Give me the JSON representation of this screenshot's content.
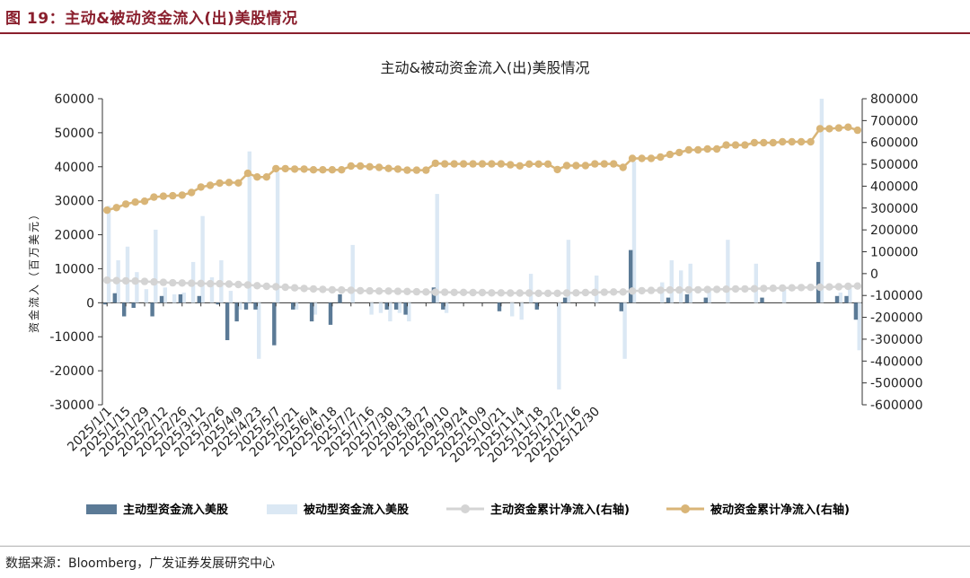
{
  "figure": {
    "label": "图 19：主动&被动资金流入(出)美股情况",
    "source": "数据来源：Bloomberg，广发证券发展研究中心"
  },
  "colors": {
    "active_bar": "#5b7a96",
    "passive_bar": "#dbe8f4",
    "active_cum_line": "#d4d4d4",
    "passive_cum_line": "#d9b577",
    "header_rule": "#8a1f2d",
    "text": "#1f1f1f"
  },
  "chart_data": {
    "type": "bar+line",
    "title": "主动&被动资金流入(出)美股情况",
    "ylabel_left": "资金流入（百万美元）",
    "ylabel_right": "",
    "ylim_left": [
      -30000,
      60000
    ],
    "ylim_right": [
      -600000,
      800000
    ],
    "yticks_left": [
      "-30000",
      "-20000",
      "-10000",
      "0",
      "10000",
      "20000",
      "30000",
      "40000",
      "50000",
      "60000"
    ],
    "yticks_right": [
      "-600000",
      "-500000",
      "-400000",
      "-300000",
      "-200000",
      "-100000",
      "0",
      "100000",
      "200000",
      "300000",
      "400000",
      "500000",
      "600000",
      "700000",
      "800000"
    ],
    "x_tick_labels": [
      "2025/1/1",
      "2025/1/15",
      "2025/1/29",
      "2025/2/12",
      "2025/2/26",
      "2025/3/12",
      "2025/3/26",
      "2025/4/9",
      "2025/4/23",
      "2025/5/7",
      "2025/5/21",
      "2025/6/4",
      "2025/6/18",
      "2025/7/2",
      "2025/7/16",
      "2025/7/30",
      "2025/8/13",
      "2025/8/27",
      "2025/9/10",
      "2025/9/24",
      "2025/10/9",
      "2025/10/21",
      "2025/11/4",
      "2025/11/18",
      "2025/12/2",
      "2025/12/16",
      "2025/12/30"
    ],
    "points_per_tick": 2,
    "legend": [
      "主动型资金流入美股",
      "被动型资金流入美股",
      "主动资金累计净流入(右轴)",
      "被动资金累计净流入(右轴)"
    ],
    "legend_position": "bottom",
    "series": [
      {
        "name": "主动型资金流入美股",
        "type": "bar",
        "axis": "left",
        "values": [
          -500,
          2800,
          -4000,
          -1500,
          0,
          -4000,
          2000,
          0,
          2500,
          0,
          2000,
          0,
          -500,
          -11000,
          -5500,
          -2000,
          -2000,
          0,
          -12500,
          0,
          -2000,
          0,
          -5500,
          0,
          -6500,
          2500,
          0,
          0,
          0,
          0,
          -2000,
          -2000,
          -3500,
          0,
          0,
          4500,
          -2000,
          0,
          0,
          0,
          0,
          0,
          -2500,
          0,
          0,
          0,
          -2000,
          0,
          0,
          1500,
          0,
          0,
          0,
          0,
          0,
          -2500,
          15500,
          0,
          0,
          0,
          1500,
          0,
          2500,
          0,
          1500,
          0,
          0,
          0,
          0,
          0,
          1500,
          0,
          0,
          0,
          0,
          0,
          12000,
          0,
          2000,
          2000,
          -5000
        ]
      },
      {
        "name": "被动型资金流入美股",
        "type": "bar",
        "axis": "left",
        "values": [
          28500,
          12500,
          16500,
          9000,
          4000,
          21500,
          4500,
          2500,
          3000,
          12000,
          25500,
          7500,
          12500,
          3500,
          -2000,
          44500,
          -16500,
          0,
          38500,
          0,
          -2000,
          0,
          -3500,
          0,
          0,
          0,
          17000,
          0,
          -3500,
          -3000,
          -5500,
          -3000,
          -5500,
          0,
          0,
          32000,
          -3000,
          0,
          0,
          0,
          0,
          0,
          0,
          -4000,
          -5000,
          8500,
          0,
          0,
          -25500,
          18500,
          0,
          0,
          8000,
          0,
          0,
          -16500,
          41500,
          0,
          0,
          6000,
          12500,
          9500,
          11500,
          0,
          4500,
          0,
          18500,
          0,
          0,
          11500,
          0,
          0,
          4000,
          0,
          0,
          0,
          60000,
          0,
          3000,
          4500,
          -14000
        ]
      },
      {
        "name": "主动资金累计净流入(右轴)",
        "type": "line",
        "axis": "right",
        "values": [
          -30000,
          -32000,
          -33000,
          -34000,
          -36000,
          -38000,
          -40000,
          -42000,
          -43000,
          -44000,
          -45000,
          -46000,
          -46000,
          -48000,
          -50000,
          -52000,
          -55000,
          -58000,
          -60000,
          -62000,
          -65000,
          -68000,
          -70000,
          -72000,
          -74000,
          -75000,
          -76000,
          -78000,
          -79000,
          -80000,
          -80000,
          -81000,
          -82000,
          -83000,
          -84000,
          -85000,
          -85000,
          -86000,
          -86000,
          -87000,
          -87000,
          -88000,
          -88000,
          -89000,
          -89000,
          -89000,
          -90000,
          -90000,
          -90000,
          -89000,
          -88000,
          -87000,
          -86000,
          -85000,
          -84000,
          -84000,
          -80000,
          -78000,
          -77000,
          -76000,
          -75000,
          -75000,
          -74000,
          -74000,
          -73000,
          -72000,
          -71000,
          -70000,
          -70000,
          -69000,
          -68000,
          -67000,
          -66000,
          -65000,
          -64000,
          -63000,
          -62000,
          -61000,
          -60000,
          -58000,
          -57000
        ]
      },
      {
        "name": "被动资金累计净流入(右轴)",
        "type": "line",
        "axis": "right",
        "values": [
          290000,
          302000,
          318000,
          327000,
          331000,
          350000,
          354000,
          356000,
          359000,
          371000,
          396000,
          404000,
          414000,
          417000,
          415000,
          459000,
          442000,
          442000,
          480000,
          480000,
          478000,
          478000,
          475000,
          475000,
          475000,
          475000,
          492000,
          492000,
          489000,
          486000,
          481000,
          478000,
          473000,
          473000,
          473000,
          505000,
          502000,
          502000,
          502000,
          502000,
          502000,
          502000,
          502000,
          498000,
          493000,
          501000,
          501000,
          501000,
          476000,
          494000,
          494000,
          494000,
          502000,
          502000,
          502000,
          486000,
          527000,
          527000,
          527000,
          533000,
          545000,
          554000,
          566000,
          566000,
          570000,
          570000,
          588000,
          588000,
          588000,
          599000,
          599000,
          599000,
          603000,
          603000,
          603000,
          603000,
          663000,
          663000,
          666000,
          670000,
          656000
        ]
      }
    ]
  }
}
